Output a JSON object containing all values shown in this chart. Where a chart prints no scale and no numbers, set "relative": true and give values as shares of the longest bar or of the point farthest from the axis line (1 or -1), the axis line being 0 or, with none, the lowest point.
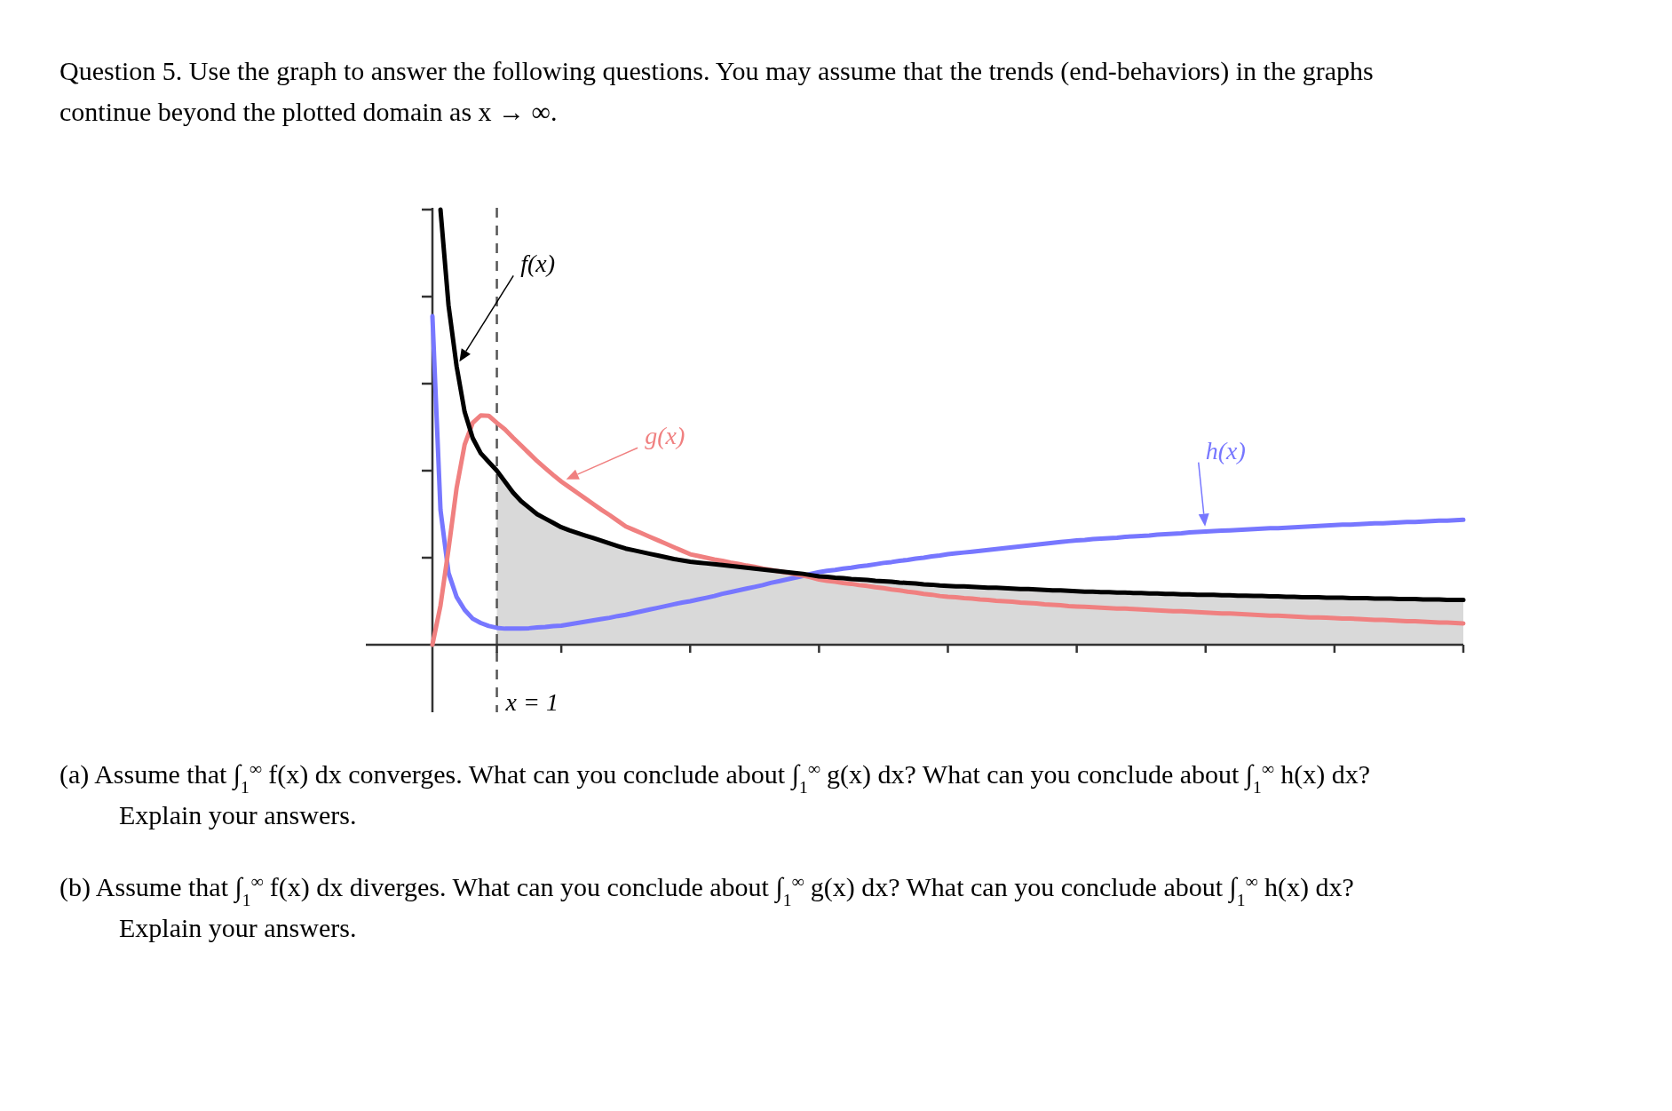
{
  "chart_data": {
    "type": "line",
    "relative": true,
    "title": "Question 5. Use the graph to answer the following questions. You may assume that the trends (end-behaviors) in the graphs continue beyond the plotted domain as x → ∞.",
    "annotations": [
      "x = 1",
      "(a) Assume that ∫$_{1}$$^{∞}$ f(x) dx converges. What can you conclude about ∫$_{1}$$^{∞}$ g(x) dx? What can you conclude about ∫$_{1}$$^{∞}$ h(x) dx? Explain your answers.",
      "(b) Assume that ∫$_{1}$$^{∞}$ f(x) dx diverges. What can you conclude about ∫$_{1}$$^{∞}$ g(x) dx? What can you conclude about ∫$_{1}$$^{∞}$ h(x) dx? Explain your answers."
    ],
    "categories": [
      null,
      null,
      null,
      null,
      null,
      null,
      null,
      null,
      null,
      null,
      null,
      null,
      null,
      null,
      null,
      null,
      null,
      null,
      null,
      null,
      null,
      null,
      null,
      null,
      null,
      null,
      null,
      null,
      null,
      null,
      null,
      null,
      null,
      null,
      null,
      null,
      null,
      null,
      null,
      null,
      null,
      null,
      null,
      null,
      null,
      null,
      null,
      null,
      null,
      null,
      null,
      null,
      null,
      null,
      null,
      null,
      null,
      null,
      null,
      null,
      null,
      null,
      null,
      null,
      null,
      null,
      null,
      null,
      null,
      null,
      null,
      null,
      null,
      null,
      null,
      null,
      null,
      null,
      null,
      null,
      null,
      null,
      null,
      null,
      null,
      null,
      null,
      null,
      null,
      null,
      null,
      null,
      null,
      null,
      null,
      null,
      null,
      null,
      null,
      null,
      null,
      null,
      null,
      null,
      null,
      null,
      null,
      null,
      null,
      null,
      null,
      null,
      null,
      null,
      null,
      null,
      null,
      null,
      null,
      null,
      null,
      null,
      null,
      null,
      null,
      null,
      null,
      null,
      null
    ],
    "series": [
      {
        "type": "area",
        "color": "#d9d9d9",
        "values": [
          null,
          null,
          null,
          null,
          null,
          null,
          null,
          null,
          0.4,
          0.375,
          0.35,
          0.33,
          0.315,
          0.3,
          0.29,
          0.28,
          0.27,
          0.263,
          0.257,
          0.251,
          0.245,
          0.239,
          0.233,
          0.227,
          0.221,
          0.217,
          0.213,
          0.209,
          0.205,
          0.201,
          0.197,
          0.194,
          0.191,
          0.189,
          0.187,
          0.185,
          0.183,
          0.181,
          0.179,
          0.177,
          0.175,
          0.173,
          0.171,
          0.169,
          0.167,
          0.165,
          0.163,
          0.16,
          0.157,
          0.156,
          0.154,
          0.153,
          0.151,
          0.15,
          0.149,
          0.147,
          0.146,
          0.145,
          0.143,
          0.142,
          0.141,
          0.139,
          0.138,
          0.136,
          0.135,
          0.134,
          0.134,
          0.133,
          0.132,
          0.131,
          0.131,
          0.13,
          0.129,
          0.128,
          0.128,
          0.127,
          0.126,
          0.125,
          0.125,
          0.124,
          0.123,
          0.122,
          0.122,
          0.121,
          0.121,
          0.12,
          0.12,
          0.119,
          0.119,
          0.118,
          0.118,
          0.117,
          0.117,
          0.116,
          0.116,
          0.115,
          0.115,
          0.115,
          0.114,
          0.114,
          0.113,
          0.113,
          0.112,
          0.112,
          0.111,
          0.111,
          0.11,
          0.11,
          0.109,
          0.109,
          0.109,
          0.108,
          0.108,
          0.108,
          0.107,
          0.107,
          0.107,
          0.106,
          0.106,
          0.106,
          0.105,
          0.105,
          0.105,
          0.104,
          0.104,
          0.104,
          0.103,
          0.103,
          0.103
        ]
      },
      {
        "name": "f(x)",
        "color": "#000000",
        "values": [
          null,
          1,
          0.78,
          0.64,
          0.535,
          0.475,
          0.44,
          0.42,
          0.4,
          0.375,
          0.35,
          0.33,
          0.315,
          0.3,
          0.29,
          0.28,
          0.27,
          0.263,
          0.257,
          0.251,
          0.245,
          0.239,
          0.233,
          0.227,
          0.221,
          0.217,
          0.213,
          0.209,
          0.205,
          0.201,
          0.197,
          0.194,
          0.191,
          0.189,
          0.187,
          0.185,
          0.183,
          0.181,
          0.179,
          0.177,
          0.175,
          0.173,
          0.171,
          0.169,
          0.167,
          0.165,
          0.163,
          0.16,
          0.157,
          0.156,
          0.154,
          0.153,
          0.151,
          0.15,
          0.149,
          0.147,
          0.146,
          0.145,
          0.143,
          0.142,
          0.141,
          0.139,
          0.138,
          0.136,
          0.135,
          0.134,
          0.134,
          0.133,
          0.132,
          0.131,
          0.131,
          0.13,
          0.129,
          0.128,
          0.128,
          0.127,
          0.126,
          0.125,
          0.125,
          0.124,
          0.123,
          0.122,
          0.122,
          0.121,
          0.121,
          0.12,
          0.12,
          0.119,
          0.119,
          0.118,
          0.118,
          0.117,
          0.117,
          0.116,
          0.116,
          0.115,
          0.115,
          0.115,
          0.114,
          0.114,
          0.113,
          0.113,
          0.112,
          0.112,
          0.111,
          0.111,
          0.11,
          0.11,
          0.109,
          0.109,
          0.109,
          0.108,
          0.108,
          0.108,
          0.107,
          0.107,
          0.107,
          0.106,
          0.106,
          0.106,
          0.105,
          0.105,
          0.105,
          0.104,
          0.104,
          0.104,
          0.103,
          0.103,
          0.103
        ]
      },
      {
        "name": "g(x)",
        "color": "#f08080",
        "values": [
          0,
          0.09,
          0.22,
          0.36,
          0.46,
          0.51,
          0.527,
          0.526,
          0.51,
          0.495,
          0.476,
          0.458,
          0.44,
          0.422,
          0.406,
          0.39,
          0.375,
          0.362,
          0.349,
          0.336,
          0.323,
          0.31,
          0.298,
          0.285,
          0.272,
          0.264,
          0.256,
          0.248,
          0.24,
          0.232,
          0.224,
          0.216,
          0.208,
          0.204,
          0.2,
          0.196,
          0.193,
          0.189,
          0.186,
          0.182,
          0.179,
          0.175,
          0.172,
          0.169,
          0.166,
          0.162,
          0.159,
          0.155,
          0.15,
          0.147,
          0.145,
          0.142,
          0.14,
          0.137,
          0.135,
          0.132,
          0.13,
          0.127,
          0.125,
          0.122,
          0.12,
          0.117,
          0.115,
          0.112,
          0.11,
          0.109,
          0.107,
          0.106,
          0.104,
          0.103,
          0.101,
          0.1,
          0.099,
          0.097,
          0.096,
          0.095,
          0.093,
          0.092,
          0.091,
          0.089,
          0.088,
          0.087,
          0.086,
          0.085,
          0.084,
          0.083,
          0.083,
          0.082,
          0.081,
          0.08,
          0.079,
          0.078,
          0.077,
          0.077,
          0.076,
          0.075,
          0.074,
          0.073,
          0.072,
          0.072,
          0.071,
          0.07,
          0.069,
          0.068,
          0.067,
          0.067,
          0.066,
          0.065,
          0.064,
          0.063,
          0.063,
          0.062,
          0.061,
          0.06,
          0.06,
          0.059,
          0.058,
          0.057,
          0.057,
          0.056,
          0.055,
          0.054,
          0.054,
          0.053,
          0.052,
          0.051,
          0.051,
          0.05,
          0.049
        ]
      },
      {
        "name": "h(x)",
        "color": "#7777ff",
        "values": [
          0.755,
          0.31,
          0.165,
          0.11,
          0.08,
          0.06,
          0.05,
          0.043,
          0.039,
          0.037,
          0.037,
          0.037,
          0.038,
          0.04,
          0.041,
          0.043,
          0.044,
          0.047,
          0.05,
          0.053,
          0.056,
          0.059,
          0.062,
          0.066,
          0.069,
          0.073,
          0.077,
          0.081,
          0.085,
          0.089,
          0.093,
          0.097,
          0.1,
          0.104,
          0.108,
          0.112,
          0.117,
          0.121,
          0.125,
          0.129,
          0.133,
          0.137,
          0.142,
          0.146,
          0.15,
          0.154,
          0.158,
          0.163,
          0.167,
          0.17,
          0.172,
          0.175,
          0.177,
          0.18,
          0.182,
          0.185,
          0.188,
          0.19,
          0.193,
          0.195,
          0.198,
          0.2,
          0.203,
          0.205,
          0.208,
          0.21,
          0.212,
          0.214,
          0.216,
          0.218,
          0.22,
          0.222,
          0.224,
          0.226,
          0.228,
          0.23,
          0.232,
          0.234,
          0.236,
          0.238,
          0.24,
          0.241,
          0.243,
          0.244,
          0.245,
          0.246,
          0.248,
          0.249,
          0.25,
          0.251,
          0.253,
          0.254,
          0.255,
          0.256,
          0.258,
          0.259,
          0.26,
          0.261,
          0.262,
          0.263,
          0.264,
          0.265,
          0.266,
          0.267,
          0.268,
          0.268,
          0.269,
          0.27,
          0.271,
          0.272,
          0.273,
          0.274,
          0.275,
          0.276,
          0.276,
          0.277,
          0.278,
          0.279,
          0.279,
          0.28,
          0.281,
          0.282,
          0.282,
          0.283,
          0.284,
          0.285,
          0.285,
          0.286,
          0.287
        ]
      }
    ]
  }
}
